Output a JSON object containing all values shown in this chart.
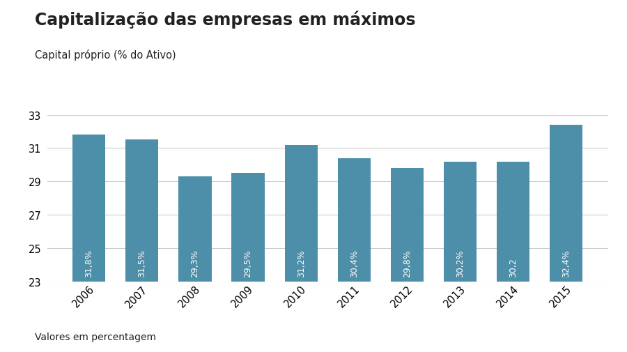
{
  "title": "Capitalização das empresas em máximos",
  "subtitle": "Capital próprio (% do Ativo)",
  "footer": "Valores em percentagem",
  "categories": [
    "2006",
    "2007",
    "2008",
    "2009",
    "2010",
    "2011",
    "2012",
    "2013",
    "2014",
    "2015"
  ],
  "values": [
    31.8,
    31.5,
    29.3,
    29.5,
    31.2,
    30.4,
    29.8,
    30.2,
    30.2,
    32.4
  ],
  "bar_labels": [
    "31,8%",
    "31,5%",
    "29,3%",
    "29,5%",
    "31,2%",
    "30,4%",
    "29,8%",
    "30,2%",
    "30,2",
    "32,4%"
  ],
  "bar_color": "#4d8fa8",
  "background_color": "#ffffff",
  "text_color": "#222222",
  "label_color": "#ffffff",
  "yticks": [
    23,
    25,
    27,
    29,
    31,
    33
  ],
  "ylim": [
    23,
    34.0
  ],
  "ymin": 23,
  "title_fontsize": 17,
  "subtitle_fontsize": 10.5,
  "footer_fontsize": 10,
  "bar_label_fontsize": 9,
  "tick_fontsize": 10.5
}
